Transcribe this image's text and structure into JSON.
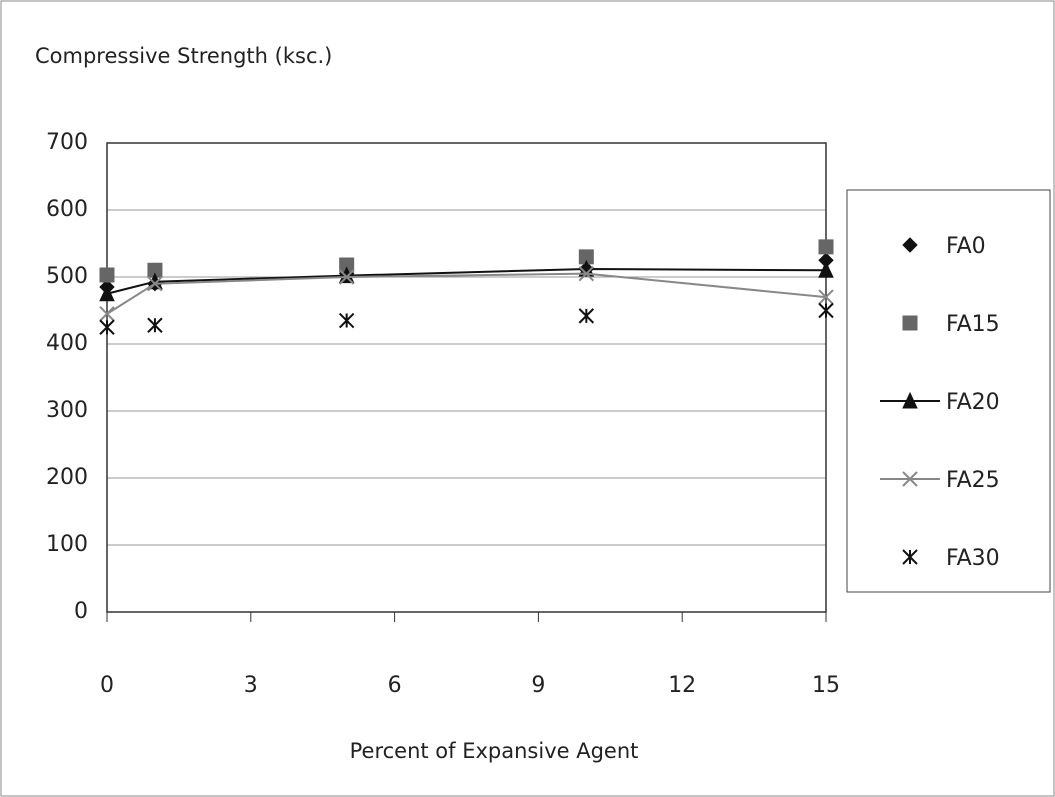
{
  "chart_data": {
    "type": "line",
    "title": "Compressive Strength (ksc.)",
    "x_label": "Percent of Expansive Agent",
    "x": [
      0,
      1,
      5,
      10,
      15
    ],
    "xlim": [
      0,
      15
    ],
    "xticks": [
      0,
      3,
      6,
      9,
      12,
      15
    ],
    "ylim": [
      0,
      700
    ],
    "yticks": [
      0,
      100,
      200,
      300,
      400,
      500,
      600,
      700
    ],
    "grid": true,
    "legend": "right",
    "series": [
      {
        "name": "FA0",
        "color": "#111111",
        "marker": "diamond",
        "line": false,
        "values": [
          485,
          490,
          505,
          512,
          525
        ]
      },
      {
        "name": "FA15",
        "color": "#666666",
        "marker": "square",
        "line": false,
        "values": [
          503,
          510,
          518,
          530,
          545
        ]
      },
      {
        "name": "FA20",
        "color": "#111111",
        "marker": "triangle",
        "line": true,
        "values": [
          475,
          493,
          502,
          512,
          510
        ]
      },
      {
        "name": "FA25",
        "color": "#888888",
        "marker": "cross",
        "line": true,
        "values": [
          445,
          490,
          500,
          505,
          470
        ]
      },
      {
        "name": "FA30",
        "color": "#111111",
        "marker": "asterisk",
        "line": false,
        "values": [
          425,
          428,
          435,
          442,
          450
        ]
      }
    ]
  }
}
